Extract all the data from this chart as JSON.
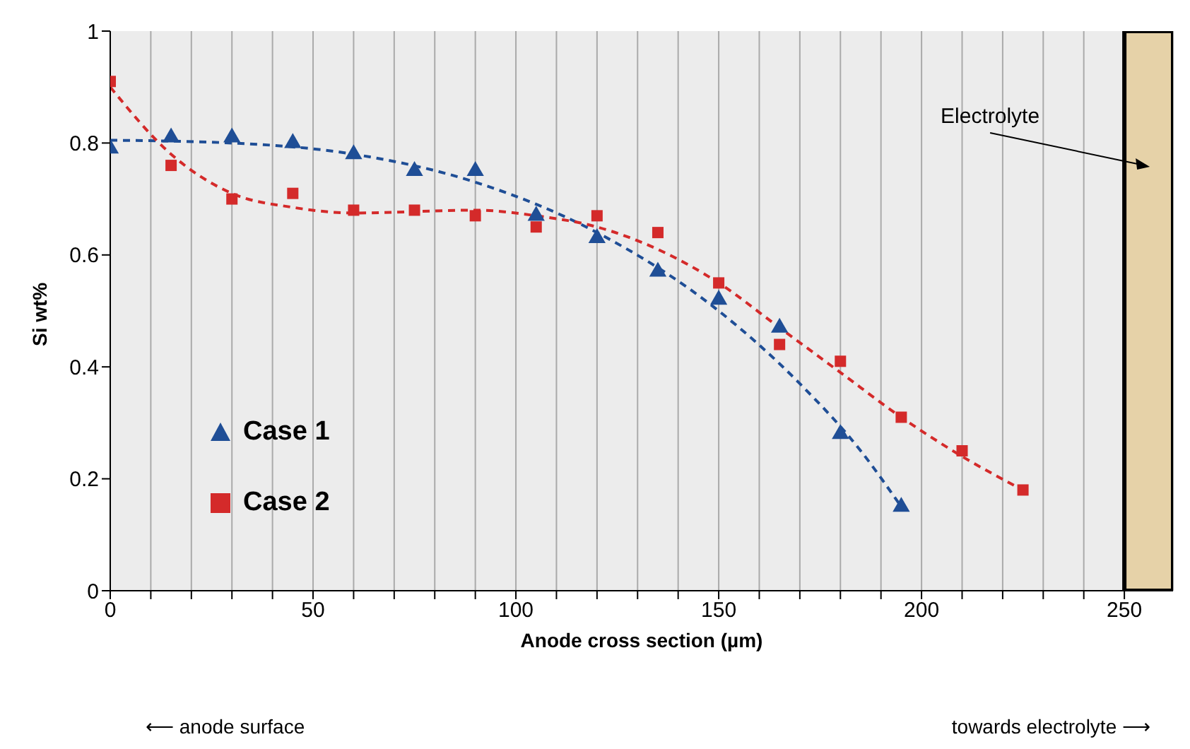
{
  "chart_data": {
    "type": "scatter",
    "xlabel": "Anode cross section (µm)",
    "ylabel": "Si wt%",
    "xlim": [
      0,
      262
    ],
    "ylim": [
      0,
      1
    ],
    "xticks": [
      0,
      {
        "value": 10,
        "label": null
      },
      {
        "value": 20,
        "label": null
      },
      {
        "value": 30,
        "label": null
      },
      {
        "value": 40,
        "label": null
      },
      50,
      {
        "value": 60,
        "label": null
      },
      {
        "value": 70,
        "label": null
      },
      {
        "value": 80,
        "label": null
      },
      {
        "value": 90,
        "label": null
      },
      100,
      {
        "value": 110,
        "label": null
      },
      {
        "value": 120,
        "label": null
      },
      {
        "value": 130,
        "label": null
      },
      {
        "value": 140,
        "label": null
      },
      150,
      {
        "value": 160,
        "label": null
      },
      {
        "value": 170,
        "label": null
      },
      {
        "value": 180,
        "label": null
      },
      {
        "value": 190,
        "label": null
      },
      200,
      {
        "value": 210,
        "label": null
      },
      {
        "value": 220,
        "label": null
      },
      {
        "value": 230,
        "label": null
      },
      {
        "value": 240,
        "label": null
      },
      250
    ],
    "yticks": [
      0,
      0.2,
      0.4,
      0.6,
      0.8,
      1
    ],
    "grid": "x",
    "legend": "left",
    "series": [
      {
        "name": "Case 1",
        "marker": "triangle",
        "color": "#1f4e96",
        "x": [
          0,
          15,
          30,
          45,
          60,
          75,
          90,
          105,
          120,
          135,
          150,
          165,
          180,
          195
        ],
        "values": [
          0.79,
          0.81,
          0.81,
          0.8,
          0.78,
          0.75,
          0.75,
          0.67,
          0.63,
          0.57,
          0.52,
          0.47,
          0.28,
          0.15
        ]
      },
      {
        "name": "Case 2",
        "marker": "square",
        "color": "#d42a2a",
        "x": [
          0,
          15,
          30,
          45,
          60,
          75,
          90,
          105,
          120,
          135,
          150,
          165,
          180,
          195,
          210,
          225
        ],
        "values": [
          0.91,
          0.76,
          0.7,
          0.71,
          0.68,
          0.68,
          0.67,
          0.65,
          0.67,
          0.64,
          0.55,
          0.44,
          0.41,
          0.31,
          0.25,
          0.18
        ]
      },
      {
        "type": "line",
        "line_style": "dashed",
        "marker": "none",
        "color": "#1f4e96",
        "x": [
          0,
          30,
          60,
          90,
          120,
          150,
          170,
          185,
          195
        ],
        "values": [
          0.805,
          0.8,
          0.78,
          0.73,
          0.64,
          0.5,
          0.37,
          0.25,
          0.15
        ]
      },
      {
        "type": "line",
        "line_style": "dashed",
        "marker": "none",
        "color": "#d42a2a",
        "x": [
          0,
          15,
          30,
          45,
          60,
          90,
          105,
          120,
          135,
          150,
          165,
          180,
          195,
          210,
          225
        ],
        "values": [
          0.9,
          0.78,
          0.71,
          0.685,
          0.675,
          0.68,
          0.67,
          0.65,
          0.61,
          0.55,
          0.47,
          0.39,
          0.31,
          0.24,
          0.18
        ]
      }
    ],
    "bands": [
      {
        "axis": "x",
        "from": 250,
        "to": 262,
        "label": "Electrolyte",
        "color": "#e6d2a8"
      }
    ],
    "annotations": [
      "⟵ anode surface",
      "towards electrolyte ⟶"
    ]
  }
}
